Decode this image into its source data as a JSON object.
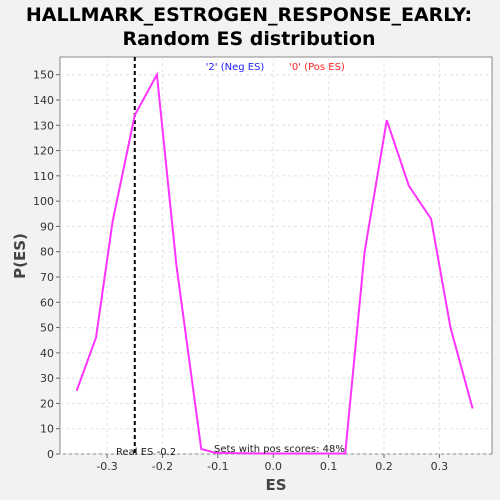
{
  "chart_data": {
    "type": "line",
    "title_lines": [
      "HALLMARK_ESTROGEN_RESPONSE_EARLY:",
      "Random ES distribution"
    ],
    "xlabel": "ES",
    "ylabel": "P(ES)",
    "xlim": [
      -0.385,
      0.395
    ],
    "ylim": [
      0,
      157
    ],
    "xticks": [
      -0.3,
      -0.2,
      -0.1,
      0.0,
      0.1,
      0.2,
      0.3
    ],
    "xtick_labels": [
      "-0.3",
      "-0.2",
      "-0.1",
      "0.0",
      "0.1",
      "0.2",
      "0.3"
    ],
    "yticks": [
      0,
      10,
      20,
      30,
      40,
      50,
      60,
      70,
      80,
      90,
      100,
      110,
      120,
      130,
      140,
      150
    ],
    "ytick_labels": [
      "0",
      "10",
      "20",
      "30",
      "40",
      "50",
      "60",
      "70",
      "80",
      "90",
      "100",
      "110",
      "120",
      "130",
      "140",
      "150"
    ],
    "grid": true,
    "series": [
      {
        "color": "#ff33ff",
        "x": [
          -0.355,
          -0.32,
          -0.29,
          -0.25,
          -0.21,
          -0.175,
          -0.13,
          -0.105,
          -0.06,
          0.0,
          0.06,
          0.13,
          0.165,
          0.205,
          0.245,
          0.285,
          0.32,
          0.36
        ],
        "y": [
          25,
          46,
          92,
          134,
          150,
          75,
          2,
          0.5,
          0.3,
          0.2,
          0.2,
          0.2,
          80,
          132,
          106,
          93,
          50,
          18
        ]
      }
    ],
    "legend": [
      {
        "label": "'2' (Neg ES)",
        "color": "#2222ff"
      },
      {
        "label": "'0' (Pos ES)",
        "color": "#ff2222"
      }
    ],
    "real_es": {
      "x": -0.25,
      "label": "Real ES -0.2",
      "color": "#000000"
    },
    "annotation": "Sets with pos scores: 48%"
  }
}
